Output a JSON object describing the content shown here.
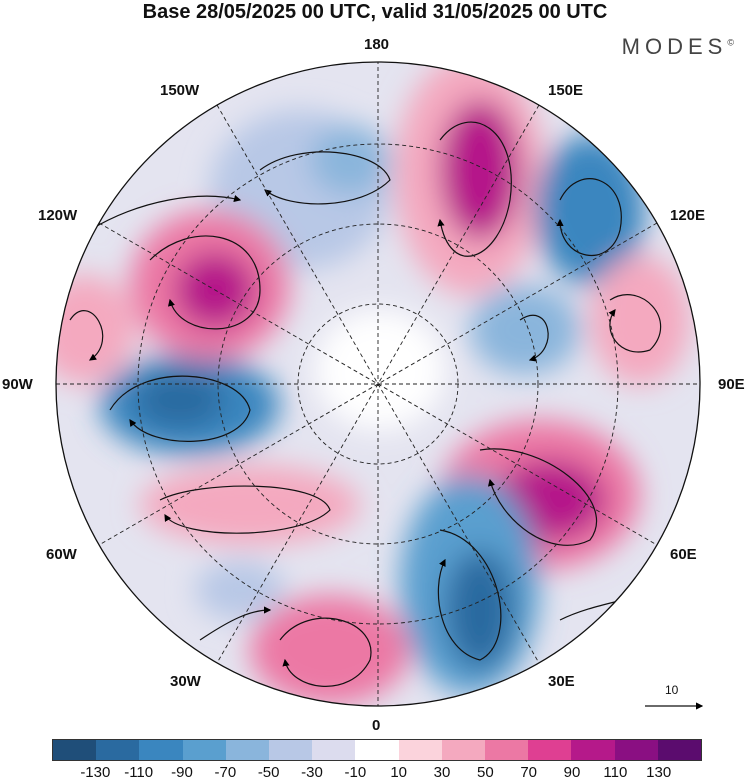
{
  "title": "Base 28/05/2025 00 UTC, valid 31/05/2025 00 UTC",
  "brand": "MODES",
  "brand_mark": "©",
  "longitude_labels": {
    "top": "180",
    "top_right": "150E",
    "right_upper": "120E",
    "right": "90E",
    "right_lower": "60E",
    "bottom_right": "30E",
    "bottom": "0",
    "bottom_left": "30W",
    "left_lower": "60W",
    "left": "90W",
    "left_upper": "120W",
    "top_left": "150W"
  },
  "reference_vector_label": "10",
  "colorbar": {
    "colors": [
      "#1f4e79",
      "#2a6aa0",
      "#3a86bf",
      "#5a9fcf",
      "#8ab5dc",
      "#b8c8e6",
      "#dcdcee",
      "#ffffff",
      "#fbd3dc",
      "#f4a9bf",
      "#ec78a4",
      "#df3f92",
      "#b5198a",
      "#8a0f82",
      "#5b0c6e"
    ],
    "ticks": [
      "-130",
      "-110",
      "-90",
      "-70",
      "-50",
      "-30",
      "-10",
      "10",
      "30",
      "50",
      "70",
      "90",
      "110",
      "130"
    ]
  }
}
